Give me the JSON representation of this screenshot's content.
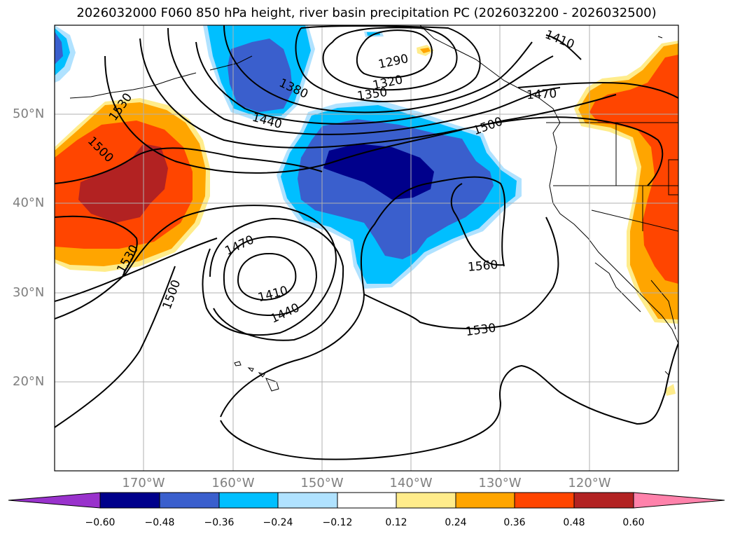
{
  "title": "2026032000 F060 850 hPa height, river basin precipitation PC (2026032200 - 2026032500)",
  "lat_labels": [
    "50°N",
    "40°N",
    "30°N",
    "20°N"
  ],
  "lon_labels": [
    "170°W",
    "160°W",
    "150°W",
    "140°W",
    "130°W",
    "120°W"
  ],
  "contour_labels": [
    "1290",
    "1320",
    "1350",
    "1380",
    "1410",
    "1410",
    "1440",
    "1440",
    "1470",
    "1470",
    "1500",
    "1500",
    "1500",
    "1530",
    "1530",
    "1530",
    "1560"
  ],
  "colorbar": {
    "ticks": [
      "−0.60",
      "−0.48",
      "−0.36",
      "−0.24",
      "−0.12",
      "0.12",
      "0.24",
      "0.36",
      "0.48",
      "0.60"
    ],
    "colors": [
      "#9932cc",
      "#00008b",
      "#3a5fcd",
      "#00bfff",
      "#b0e2ff",
      "#ffffff",
      "#ffec8b",
      "#ffa500",
      "#ff4500",
      "#b22222",
      "#ff82ab"
    ]
  },
  "colors": {
    "dark_blue": "#00008b",
    "mid_blue": "#3a5fcd",
    "sky_blue": "#00bfff",
    "light_blue": "#b0e2ff",
    "light_yellow": "#ffec8b",
    "orange": "#ffa500",
    "orange_red": "#ff4500",
    "firebrick": "#b22222",
    "grid": "#b0b0b0"
  }
}
